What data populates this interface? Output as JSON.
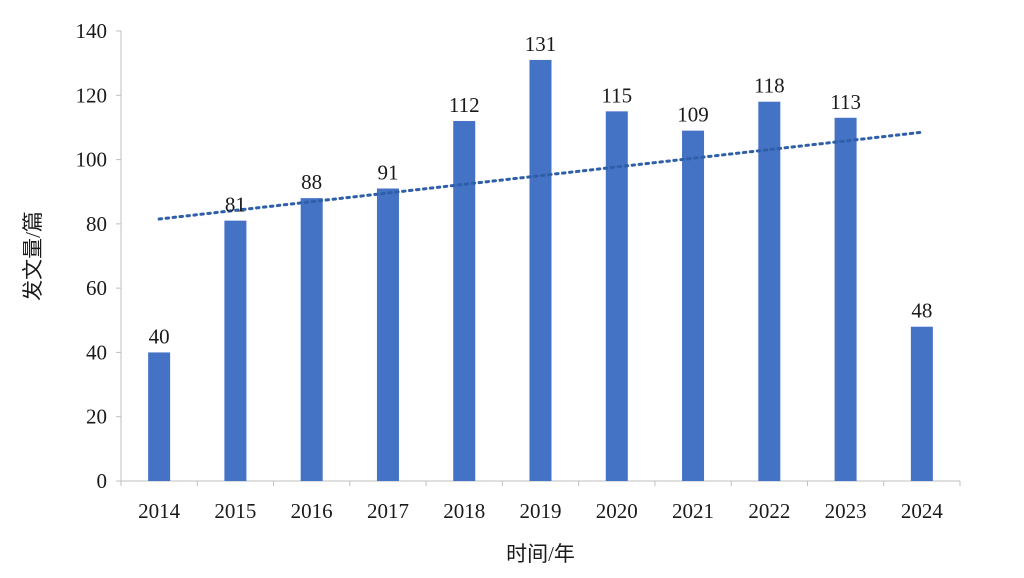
{
  "chart_data": {
    "type": "bar",
    "categories": [
      "2014",
      "2015",
      "2016",
      "2017",
      "2018",
      "2019",
      "2020",
      "2021",
      "2022",
      "2023",
      "2024"
    ],
    "values": [
      40,
      81,
      88,
      91,
      112,
      131,
      115,
      109,
      118,
      113,
      48
    ],
    "data_labels": [
      "40",
      "81",
      "88",
      "91",
      "112",
      "131",
      "115",
      "109",
      "118",
      "113",
      "48"
    ],
    "xlabel": "时间/年",
    "ylabel": "发文量/篇",
    "ylim": [
      0,
      140
    ],
    "yticks": [
      "0",
      "20",
      "40",
      "60",
      "80",
      "100",
      "120",
      "140"
    ],
    "ytick_values": [
      0,
      20,
      40,
      60,
      80,
      100,
      120,
      140
    ],
    "grid": false,
    "legend": "none",
    "bar_color": "#4472c4",
    "trendline": {
      "type": "linear",
      "style": "dotted",
      "color": "#2e5fa8",
      "start": [
        2014,
        81.5
      ],
      "end": [
        2024,
        108.5
      ]
    }
  }
}
